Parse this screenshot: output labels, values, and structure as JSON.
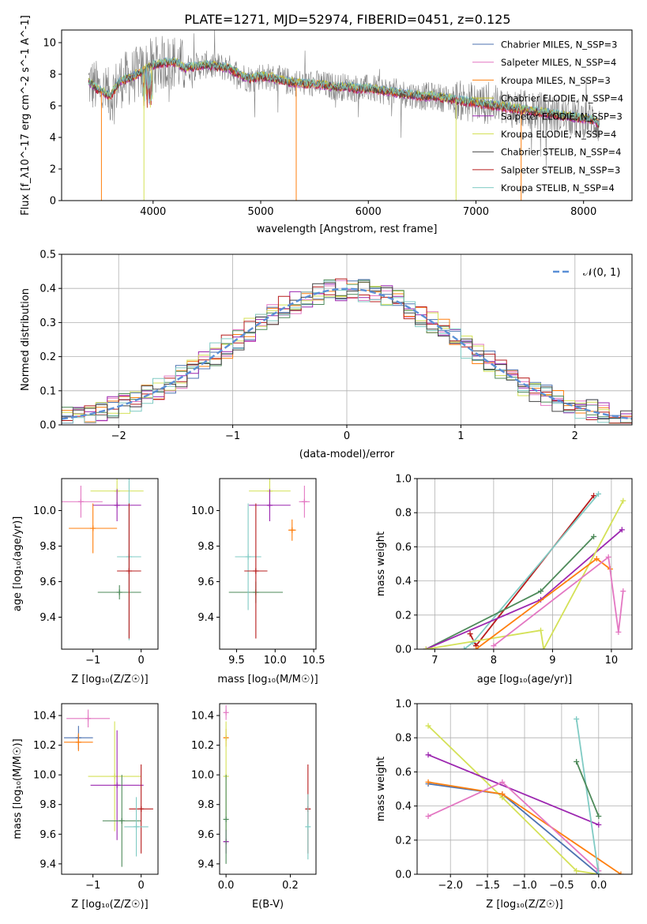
{
  "figure": {
    "title": "PLATE=1271, MJD=52974, FIBERID=0451, z=0.125"
  },
  "colors": {
    "Chabrier MILES": "#4c72b0",
    "Salpeter MILES": "#e377c2",
    "Kroupa MILES": "#ff7f0e",
    "Chabrier ELODIE": "#bcbd22",
    "Salpeter ELODIE": "#9c27b0",
    "Kroupa ELODIE": "#d4e157",
    "Chabrier STELIB": "#444444",
    "Salpeter STELIB": "#b71c1c",
    "Kroupa STELIB": "#80cbc4",
    "data": "#808080",
    "normal": "#5b8fd6",
    "green": "#4e8a5a"
  },
  "chart_data": [
    {
      "id": "spectrum",
      "type": "line",
      "xlabel": "wavelength [Angstrom, rest frame]",
      "ylabel": "Flux [f_λ10^-17 erg cm^-2 s^-1 A^-1]",
      "xlim": [
        3150,
        8450
      ],
      "ylim": [
        0,
        10.8
      ],
      "xticks": [
        4000,
        5000,
        6000,
        7000,
        8000
      ],
      "yticks": [
        0,
        2,
        4,
        6,
        8,
        10
      ],
      "legend": {
        "placement": "top-right",
        "entries": [
          {
            "label": "Chabrier MILES, N_SSP=3",
            "color_key": "Chabrier MILES"
          },
          {
            "label": "Salpeter MILES, N_SSP=4",
            "color_key": "Salpeter MILES"
          },
          {
            "label": "Kroupa MILES, N_SSP=3",
            "color_key": "Kroupa MILES"
          },
          {
            "label": "Chabrier ELODIE, N_SSP=4",
            "color_key": "Chabrier ELODIE"
          },
          {
            "label": "Salpeter ELODIE, N_SSP=3",
            "color_key": "Salpeter ELODIE"
          },
          {
            "label": "Kroupa ELODIE, N_SSP=4",
            "color_key": "Kroupa ELODIE"
          },
          {
            "label": "Chabrier STELIB, N_SSP=4",
            "color_key": "Chabrier STELIB"
          },
          {
            "label": "Salpeter STELIB, N_SSP=3",
            "color_key": "Salpeter STELIB"
          },
          {
            "label": "Kroupa STELIB, N_SSP=4",
            "color_key": "Kroupa STELIB"
          }
        ]
      },
      "continuum": [
        [
          3400,
          7.5
        ],
        [
          3500,
          7.0
        ],
        [
          3600,
          6.6
        ],
        [
          3700,
          7.6
        ],
        [
          3800,
          7.8
        ],
        [
          3900,
          8.2
        ],
        [
          4000,
          8.6
        ],
        [
          4100,
          8.7
        ],
        [
          4200,
          8.8
        ],
        [
          4300,
          8.4
        ],
        [
          4400,
          8.5
        ],
        [
          4500,
          8.6
        ],
        [
          4600,
          8.5
        ],
        [
          4700,
          8.4
        ],
        [
          4800,
          8.0
        ],
        [
          4900,
          7.7
        ],
        [
          5000,
          7.9
        ],
        [
          5100,
          7.8
        ],
        [
          5200,
          7.6
        ],
        [
          5300,
          7.5
        ],
        [
          5400,
          7.4
        ],
        [
          5500,
          7.4
        ],
        [
          5600,
          7.3
        ],
        [
          5700,
          7.2
        ],
        [
          5800,
          7.2
        ],
        [
          5900,
          7.1
        ],
        [
          6000,
          7.1
        ],
        [
          6100,
          7.0
        ],
        [
          6200,
          6.9
        ],
        [
          6300,
          6.8
        ],
        [
          6400,
          6.7
        ],
        [
          6500,
          6.6
        ],
        [
          6600,
          6.6
        ],
        [
          6700,
          6.5
        ],
        [
          6800,
          6.4
        ],
        [
          6900,
          6.3
        ],
        [
          7000,
          6.2
        ],
        [
          7100,
          6.1
        ],
        [
          7200,
          6.0
        ],
        [
          7300,
          5.9
        ],
        [
          7400,
          5.8
        ],
        [
          7500,
          5.7
        ],
        [
          7600,
          5.6
        ],
        [
          7700,
          5.5
        ],
        [
          7800,
          5.4
        ],
        [
          7900,
          5.3
        ],
        [
          8000,
          5.2
        ],
        [
          8100,
          5.1
        ],
        [
          8150,
          4.8
        ]
      ],
      "dips": [
        {
          "x": 3520,
          "y": 0.0,
          "color_key": "Kroupa MILES"
        },
        {
          "x": 3915,
          "y": 0.0,
          "color_key": "Kroupa ELODIE"
        },
        {
          "x": 5330,
          "y": 0.0,
          "color_key": "Kroupa MILES"
        },
        {
          "x": 6815,
          "y": 0.0,
          "color_key": "Kroupa ELODIE"
        },
        {
          "x": 7420,
          "y": 0.0,
          "color_key": "Kroupa MILES"
        }
      ]
    },
    {
      "id": "residuals",
      "type": "line",
      "xlabel": "(data-model)/error",
      "ylabel": "Normed distribution",
      "xlim": [
        -2.5,
        2.5
      ],
      "ylim": [
        0,
        0.5
      ],
      "xticks": [
        -2,
        -1,
        0,
        1,
        2
      ],
      "yticks": [
        0.0,
        0.1,
        0.2,
        0.3,
        0.4,
        0.5
      ],
      "legend": {
        "placement": "top-right",
        "entries": [
          {
            "label": "𝒩(0, 1)",
            "color_key": "normal"
          }
        ]
      },
      "bin_width": 0.1,
      "bin_start": -2.5
    },
    {
      "id": "age_vs_Z",
      "type": "scatter",
      "xlabel": "Z [log₁₀(Z/Z☉)]",
      "ylabel": "age  [log₁₀(age/yr)]",
      "xlim": [
        -1.65,
        0.35
      ],
      "ylim": [
        9.22,
        10.18
      ],
      "xticks": [
        -1,
        0
      ],
      "yticks": [
        9.4,
        9.6,
        9.8,
        10.0
      ],
      "points": [
        {
          "x": -1.25,
          "y": 10.05,
          "xerr": 0.45,
          "yerr": 0.09,
          "color_key": "Salpeter MILES"
        },
        {
          "x": -1.0,
          "y": 9.9,
          "xerr": 0.5,
          "yerr": 0.14,
          "color_key": "Kroupa MILES"
        },
        {
          "x": -0.5,
          "y": 10.11,
          "xerr": 0.55,
          "yerr": 0.09,
          "color_key": "Kroupa ELODIE"
        },
        {
          "x": -0.5,
          "y": 10.03,
          "xerr": 0.5,
          "yerr": 0.09,
          "color_key": "Salpeter ELODIE"
        },
        {
          "x": -0.45,
          "y": 9.54,
          "xerr": 0.45,
          "yerr": 0.04,
          "color_key": "green"
        },
        {
          "x": -0.25,
          "y": 9.74,
          "xerr": 0.25,
          "yerr": 0.47,
          "color_key": "Kroupa STELIB"
        },
        {
          "x": -0.25,
          "y": 9.66,
          "xerr": 0.25,
          "yerr": 0.38,
          "color_key": "Salpeter STELIB"
        }
      ]
    },
    {
      "id": "age_vs_mass",
      "type": "scatter",
      "xlabel": "mass [log₁₀(M/M☉)]",
      "ylabel": "",
      "xlim": [
        9.28,
        10.53
      ],
      "ylim": [
        9.22,
        10.18
      ],
      "xticks": [
        9.5,
        10.0,
        10.5
      ],
      "yticks": [
        9.4,
        9.6,
        9.8,
        10.0
      ],
      "points": [
        {
          "x": 10.38,
          "y": 10.05,
          "xerr": 0.07,
          "yerr": 0.09,
          "color_key": "Salpeter MILES"
        },
        {
          "x": 10.22,
          "y": 9.89,
          "xerr": 0.05,
          "yerr": 0.06,
          "color_key": "Kroupa MILES"
        },
        {
          "x": 9.93,
          "y": 10.11,
          "xerr": 0.27,
          "yerr": 0.09,
          "color_key": "Kroupa ELODIE"
        },
        {
          "x": 9.93,
          "y": 10.03,
          "xerr": 0.27,
          "yerr": 0.09,
          "color_key": "Salpeter ELODIE"
        },
        {
          "x": 9.75,
          "y": 9.54,
          "xerr": 0.35,
          "yerr": 0.06,
          "color_key": "green"
        },
        {
          "x": 9.65,
          "y": 9.74,
          "xerr": 0.17,
          "yerr": 0.3,
          "color_key": "Kroupa STELIB"
        },
        {
          "x": 9.75,
          "y": 9.66,
          "xerr": 0.15,
          "yerr": 0.38,
          "color_key": "Salpeter STELIB"
        }
      ]
    },
    {
      "id": "massweight_vs_age",
      "type": "line",
      "xlabel": "age  [log₁₀(age/yr)]",
      "ylabel": "mass weight",
      "xlim": [
        6.7,
        10.35
      ],
      "ylim": [
        0,
        1.0
      ],
      "xticks": [
        7,
        8,
        9,
        10
      ],
      "yticks": [
        0.0,
        0.2,
        0.4,
        0.6,
        0.8,
        1.0
      ],
      "series": [
        {
          "color_key": "Salpeter STELIB",
          "points": [
            [
              7.6,
              0.09
            ],
            [
              7.7,
              0.02
            ],
            [
              9.7,
              0.9
            ]
          ]
        },
        {
          "color_key": "Kroupa STELIB",
          "points": [
            [
              7.5,
              0.0
            ],
            [
              7.65,
              0.04
            ],
            [
              9.78,
              0.91
            ]
          ]
        },
        {
          "color_key": "green",
          "points": [
            [
              6.85,
              0.0
            ],
            [
              8.8,
              0.34
            ],
            [
              9.7,
              0.66
            ]
          ]
        },
        {
          "color_key": "Salpeter ELODIE",
          "points": [
            [
              6.85,
              0.0
            ],
            [
              8.8,
              0.29
            ],
            [
              10.18,
              0.7
            ]
          ]
        },
        {
          "color_key": "Kroupa ELODIE",
          "points": [
            [
              6.85,
              0.0
            ],
            [
              8.8,
              0.11
            ],
            [
              8.85,
              0.0
            ],
            [
              10.2,
              0.87
            ]
          ]
        },
        {
          "color_key": "Kroupa MILES",
          "points": [
            [
              7.7,
              0.0
            ],
            [
              9.75,
              0.53
            ],
            [
              9.98,
              0.47
            ]
          ]
        },
        {
          "color_key": "Salpeter MILES",
          "points": [
            [
              8.0,
              0.02
            ],
            [
              9.95,
              0.54
            ],
            [
              10.12,
              0.1
            ],
            [
              10.2,
              0.34
            ]
          ]
        }
      ]
    },
    {
      "id": "mass_vs_Z",
      "type": "scatter",
      "xlabel": "Z [log₁₀(Z/Z☉)]",
      "ylabel": "mass [log₁₀(M/M☉)]",
      "xlim": [
        -1.65,
        0.35
      ],
      "ylim": [
        9.33,
        10.48
      ],
      "xticks": [
        -1,
        0
      ],
      "yticks": [
        9.4,
        9.6,
        9.8,
        10.0,
        10.2,
        10.4
      ],
      "points": [
        {
          "x": -1.1,
          "y": 10.38,
          "xerr": 0.45,
          "yerr": 0.06,
          "color_key": "Salpeter MILES"
        },
        {
          "x": -1.3,
          "y": 10.25,
          "xerr": 0.3,
          "yerr": 0.08,
          "color_key": "Chabrier MILES"
        },
        {
          "x": -1.3,
          "y": 10.22,
          "xerr": 0.3,
          "yerr": 0.06,
          "color_key": "Kroupa MILES"
        },
        {
          "x": -0.55,
          "y": 9.99,
          "xerr": 0.55,
          "yerr": 0.37,
          "color_key": "Kroupa ELODIE"
        },
        {
          "x": -0.5,
          "y": 9.93,
          "xerr": 0.55,
          "yerr": 0.37,
          "color_key": "Salpeter ELODIE"
        },
        {
          "x": -0.4,
          "y": 9.69,
          "xerr": 0.4,
          "yerr": 0.31,
          "color_key": "green"
        },
        {
          "x": 0.0,
          "y": 9.77,
          "xerr": 0.25,
          "yerr": 0.3,
          "color_key": "Salpeter STELIB"
        },
        {
          "x": -0.1,
          "y": 9.65,
          "xerr": 0.25,
          "yerr": 0.2,
          "color_key": "Kroupa STELIB"
        }
      ]
    },
    {
      "id": "mass_vs_ebv",
      "type": "scatter",
      "xlabel": "E(B-V)",
      "ylabel": "",
      "xlim": [
        -0.02,
        0.28
      ],
      "ylim": [
        9.33,
        10.48
      ],
      "xticks": [
        0.0,
        0.2
      ],
      "yticks": [
        9.4,
        9.6,
        9.8,
        10.0,
        10.2,
        10.4
      ],
      "points": [
        {
          "x": 0.0,
          "y": 10.42,
          "xerr": 0.0,
          "yerr": 0.05,
          "color_key": "Salpeter MILES"
        },
        {
          "x": 0.0,
          "y": 10.25,
          "xerr": 0.0,
          "yerr": 0.06,
          "color_key": "Kroupa MILES"
        },
        {
          "x": 0.0,
          "y": 9.99,
          "xerr": 0.0,
          "yerr": 0.37,
          "color_key": "Kroupa ELODIE"
        },
        {
          "x": 0.0,
          "y": 9.55,
          "xerr": 0.0,
          "yerr": 0.08,
          "color_key": "Salpeter ELODIE"
        },
        {
          "x": 0.0,
          "y": 9.7,
          "xerr": 0.0,
          "yerr": 0.3,
          "color_key": "green"
        },
        {
          "x": 0.255,
          "y": 9.77,
          "xerr": 0.0,
          "yerr": 0.3,
          "color_key": "Salpeter STELIB"
        },
        {
          "x": 0.255,
          "y": 9.65,
          "xerr": 0.0,
          "yerr": 0.22,
          "color_key": "Kroupa STELIB"
        }
      ]
    },
    {
      "id": "massweight_vs_Z",
      "type": "line",
      "xlabel": "Z [log₁₀(Z/Z☉)]",
      "ylabel": "mass weight",
      "xlim": [
        -2.45,
        0.45
      ],
      "ylim": [
        0,
        1.0
      ],
      "xticks": [
        -2.0,
        -1.5,
        -1.0,
        -0.5,
        0.0
      ],
      "yticks": [
        0.0,
        0.2,
        0.4,
        0.6,
        0.8,
        1.0
      ],
      "series": [
        {
          "color_key": "Kroupa ELODIE",
          "points": [
            [
              -2.3,
              0.87
            ],
            [
              -1.3,
              0.45
            ],
            [
              -0.3,
              0.02
            ],
            [
              0.0,
              0.0
            ]
          ]
        },
        {
          "color_key": "Salpeter ELODIE",
          "points": [
            [
              -2.3,
              0.7
            ],
            [
              0.0,
              0.29
            ]
          ]
        },
        {
          "color_key": "Chabrier MILES",
          "points": [
            [
              -2.3,
              0.53
            ],
            [
              -1.3,
              0.47
            ],
            [
              0.0,
              0.0
            ]
          ]
        },
        {
          "color_key": "Kroupa MILES",
          "points": [
            [
              -2.3,
              0.54
            ],
            [
              -1.3,
              0.47
            ],
            [
              0.3,
              0.0
            ]
          ]
        },
        {
          "color_key": "Salpeter MILES",
          "points": [
            [
              -2.3,
              0.34
            ],
            [
              -1.3,
              0.54
            ],
            [
              0.0,
              0.02
            ]
          ]
        },
        {
          "color_key": "Kroupa STELIB",
          "points": [
            [
              -0.3,
              0.91
            ],
            [
              0.0,
              0.0
            ]
          ]
        },
        {
          "color_key": "green",
          "points": [
            [
              -0.3,
              0.66
            ],
            [
              0.0,
              0.34
            ]
          ]
        }
      ]
    }
  ]
}
